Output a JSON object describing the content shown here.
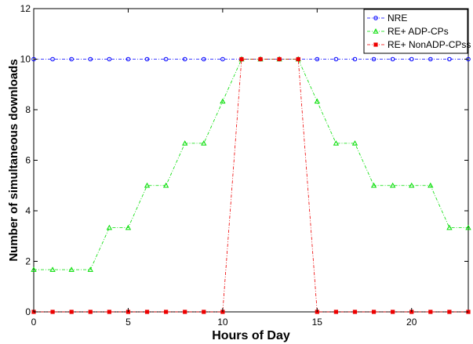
{
  "chart_data": {
    "type": "line",
    "title": "",
    "xlabel": "Hours of Day",
    "ylabel": "Number of simultaneous downloads",
    "xlim": [
      0,
      23
    ],
    "ylim": [
      0,
      12
    ],
    "xticks": [
      0,
      5,
      10,
      15,
      20
    ],
    "yticks": [
      0,
      2,
      4,
      6,
      8,
      10,
      12
    ],
    "grid": false,
    "legend_position": "top-right",
    "x": [
      0,
      1,
      2,
      3,
      4,
      5,
      6,
      7,
      8,
      9,
      10,
      11,
      12,
      13,
      14,
      15,
      16,
      17,
      18,
      19,
      20,
      21,
      22,
      23
    ],
    "series": [
      {
        "name": "NRE",
        "color": "#0000ff",
        "marker": "circle",
        "line": "dash-dot",
        "values": [
          10,
          10,
          10,
          10,
          10,
          10,
          10,
          10,
          10,
          10,
          10,
          10,
          10,
          10,
          10,
          10,
          10,
          10,
          10,
          10,
          10,
          10,
          10,
          10
        ]
      },
      {
        "name": "RE+ ADP-CPs",
        "color": "#00dd00",
        "marker": "triangle",
        "line": "dash-dot",
        "values": [
          1.67,
          1.67,
          1.67,
          1.67,
          3.33,
          3.33,
          5,
          5,
          6.67,
          6.67,
          8.33,
          10,
          10,
          10,
          10,
          8.33,
          6.67,
          6.67,
          5,
          5,
          5,
          5,
          3.33,
          3.33
        ]
      },
      {
        "name": "RE+ NonADP-CPss",
        "color": "#ee0000",
        "marker": "square",
        "line": "dash-dot",
        "values": [
          0,
          0,
          0,
          0,
          0,
          0,
          0,
          0,
          0,
          0,
          0,
          10,
          10,
          10,
          10,
          0,
          0,
          0,
          0,
          0,
          0,
          0,
          0,
          0
        ]
      }
    ]
  }
}
